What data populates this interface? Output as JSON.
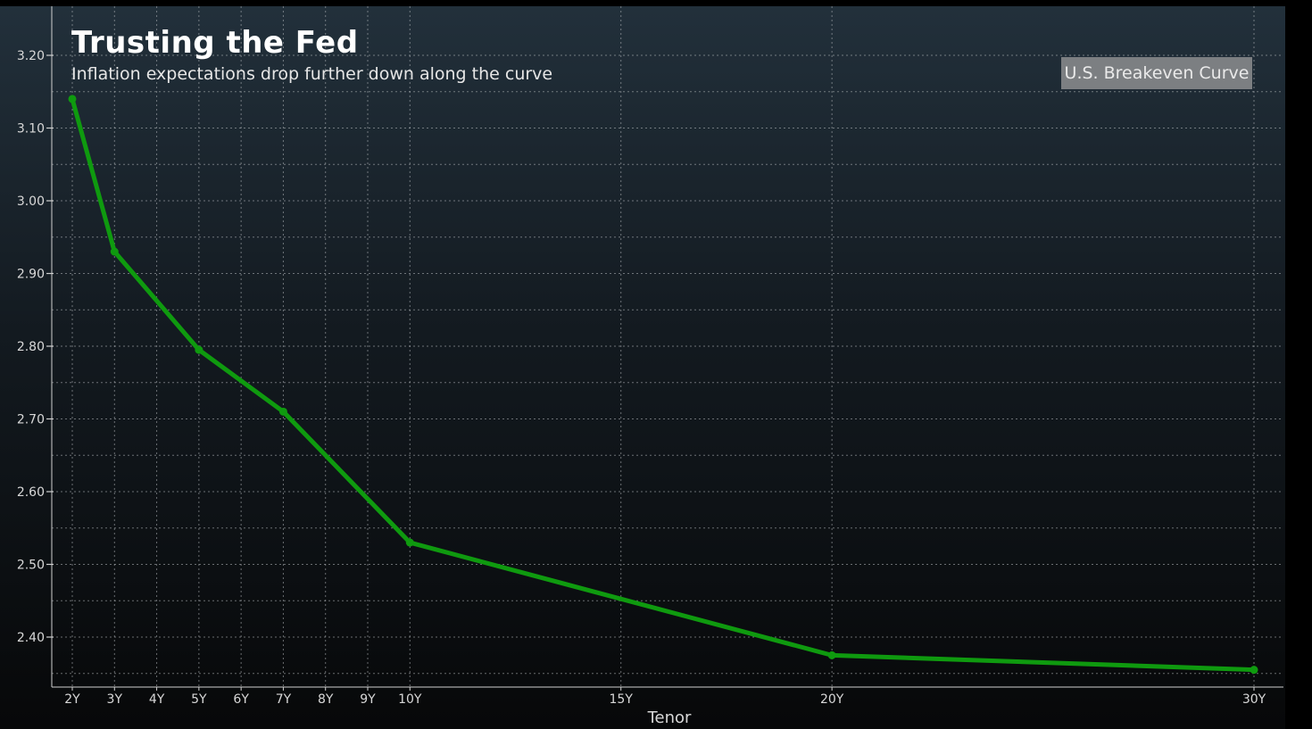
{
  "chart_data": {
    "type": "line",
    "title": "Trusting the Fed",
    "subtitle": "Inflation expectations drop further down along the curve",
    "xlabel": "Tenor",
    "ylabel": "",
    "x_tick_labels": [
      "2Y",
      "3Y",
      "4Y",
      "5Y",
      "6Y",
      "7Y",
      "8Y",
      "9Y",
      "10Y",
      "15Y",
      "20Y",
      "30Y"
    ],
    "x_tick_values": [
      2,
      3,
      4,
      5,
      6,
      7,
      8,
      9,
      10,
      15,
      20,
      30
    ],
    "y_tick_labels": [
      "2.40",
      "2.50",
      "2.60",
      "2.70",
      "2.80",
      "2.90",
      "3.00",
      "3.10",
      "3.20"
    ],
    "y_tick_values": [
      2.4,
      2.5,
      2.6,
      2.7,
      2.8,
      2.9,
      3.0,
      3.1,
      3.2
    ],
    "xlim": [
      2,
      30
    ],
    "ylim": [
      2.35,
      3.25
    ],
    "grid": true,
    "legend_position": "top-right",
    "series": [
      {
        "name": "U.S. Breakeven Curve",
        "color": "#0f9a0f",
        "x": [
          2,
          3,
          5,
          7,
          10,
          20,
          30
        ],
        "y": [
          3.14,
          2.93,
          2.795,
          2.71,
          2.53,
          2.375,
          2.355
        ]
      }
    ],
    "colors": {
      "background_top": "#22303b",
      "background_bottom": "#070809",
      "grid": "#b8bcc0",
      "axis": "#d0d0d0",
      "text": "#d8d8d8"
    }
  }
}
